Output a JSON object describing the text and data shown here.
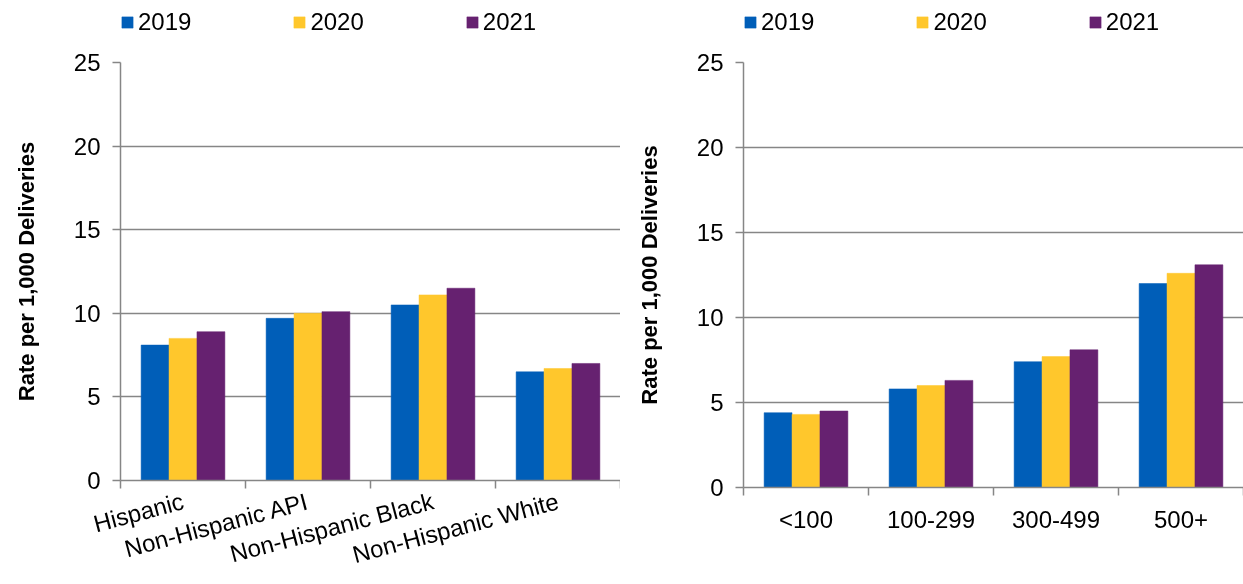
{
  "chart_data": [
    {
      "type": "bar",
      "ylabel": "Rate per 1,000 Deliveries",
      "categories": [
        "Hispanic",
        "Non-Hispanic API",
        "Non-Hispanic Black",
        "Non-Hispanic White"
      ],
      "series": [
        {
          "name": "2019",
          "color": "#005eb8",
          "values": [
            8.1,
            9.7,
            10.5,
            6.5
          ]
        },
        {
          "name": "2020",
          "color": "#ffc72c",
          "values": [
            8.5,
            10.0,
            11.1,
            6.7
          ]
        },
        {
          "name": "2021",
          "color": "#662170",
          "values": [
            8.9,
            10.1,
            11.5,
            7.0
          ]
        }
      ],
      "ylim": [
        0,
        25
      ],
      "yticks": [
        0,
        5,
        10,
        15,
        20,
        25
      ],
      "grid": "y",
      "legend": "top"
    },
    {
      "type": "bar",
      "ylabel": "Rate per 1,000 Deliveries",
      "categories": [
        "<100",
        "100-299",
        "300-499",
        "500+"
      ],
      "series": [
        {
          "name": "2019",
          "color": "#005eb8",
          "values": [
            4.4,
            5.8,
            7.4,
            12.0
          ]
        },
        {
          "name": "2020",
          "color": "#ffc72c",
          "values": [
            4.3,
            6.0,
            7.7,
            12.6
          ]
        },
        {
          "name": "2021",
          "color": "#662170",
          "values": [
            4.5,
            6.3,
            8.1,
            13.1
          ]
        }
      ],
      "ylim": [
        0,
        25
      ],
      "yticks": [
        0,
        5,
        10,
        15,
        20,
        25
      ],
      "grid": "y",
      "legend": "top"
    }
  ]
}
